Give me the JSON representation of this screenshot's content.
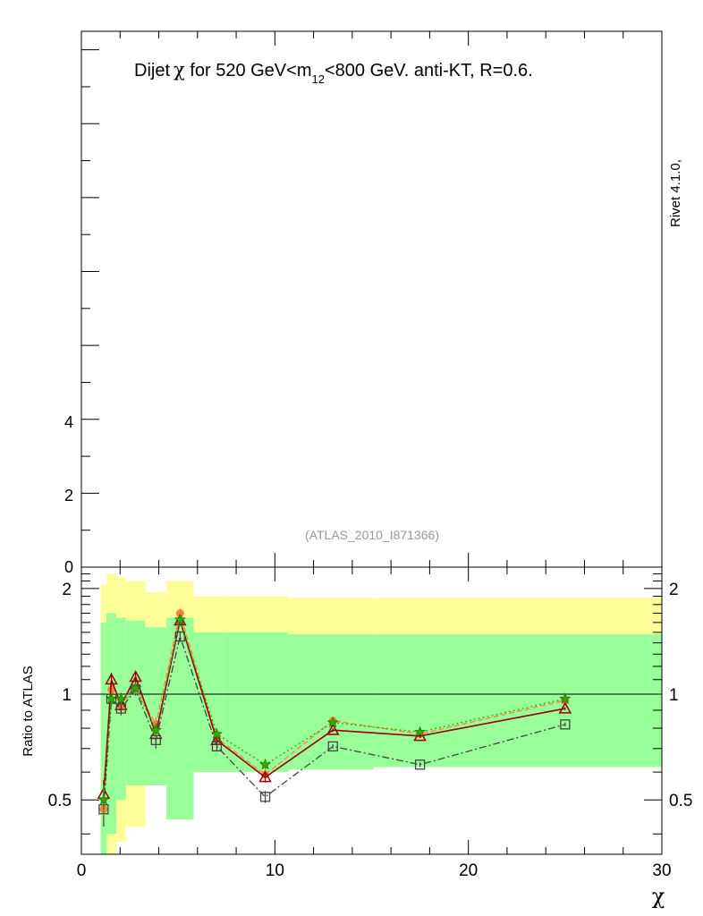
{
  "chart_data": [
    {
      "panel": "main",
      "type": "line",
      "title": "Dijet χ for 520 GeV<m₁₂<800 GeV.  anti-KT, R=0.6.",
      "title_parts": {
        "prefix": "Dijet",
        "chi": "χ",
        "middle": " for 520 GeV<m",
        "subscript": "12",
        "suffix": "<800 GeV.  anti-KT, R=0.6."
      },
      "watermark": "(ATLAS_2010_I871366)",
      "side_label": "Rivet 4.1.0,",
      "xlim": [
        0,
        30
      ],
      "ylim": [
        0,
        14.5
      ],
      "y_ticks": [
        {
          "value": 0,
          "label": "0"
        },
        {
          "value": 2,
          "label": "2"
        },
        {
          "value": 4,
          "label": "4"
        }
      ],
      "y_minor_ticks": [
        1,
        3,
        5,
        6,
        7,
        8,
        9,
        10,
        11,
        12,
        13,
        14
      ],
      "x_major_ticks": [
        0,
        10,
        20,
        30
      ],
      "grid": false
    },
    {
      "panel": "ratio",
      "type": "line",
      "ylabel": "Ratio to ATLAS",
      "xlabel": "χ",
      "xlim": [
        0,
        30
      ],
      "ylim": [
        0.35,
        2.3
      ],
      "log_y": true,
      "grid": false,
      "x_ticks": [
        {
          "value": 0,
          "label": "0"
        },
        {
          "value": 10,
          "label": "10"
        },
        {
          "value": 20,
          "label": "20"
        },
        {
          "value": 30,
          "label": "30"
        }
      ],
      "y_ticks": [
        {
          "value": 0.5,
          "label": "0.5"
        },
        {
          "value": 1,
          "label": "1"
        },
        {
          "value": 2,
          "label": "2"
        }
      ],
      "y_minor_ticks": [
        0.4,
        0.6,
        0.7,
        0.8,
        0.9,
        1.1,
        1.2,
        1.3,
        1.4,
        1.5,
        1.6,
        1.7,
        1.8,
        1.9,
        2.1,
        2.2
      ],
      "reference_line": 1,
      "bands": {
        "edges": [
          1,
          1.3,
          1.8,
          2.3,
          3.3,
          4.4,
          5.8,
          7.3,
          10.7,
          15.1,
          30
        ],
        "outer": {
          "color": "#ffff99",
          "lower": [
            0.25,
            0.28,
            0.38,
            0.42,
            0.55,
            0.44,
            0.6,
            0.6,
            0.61,
            0.62
          ],
          "upper": [
            2.05,
            2.2,
            2.15,
            2.1,
            1.95,
            2.1,
            1.9,
            1.9,
            1.88,
            1.88
          ]
        },
        "inner": {
          "color": "#99ff99",
          "lower": [
            0.35,
            0.4,
            0.5,
            0.55,
            0.55,
            0.44,
            0.6,
            0.6,
            0.61,
            0.62
          ],
          "upper": [
            1.6,
            1.7,
            1.65,
            1.62,
            1.55,
            1.65,
            1.5,
            1.5,
            1.48,
            1.48
          ]
        }
      },
      "series": [
        {
          "color": "#ff7f3f",
          "dash": "6,3",
          "marker": "dot",
          "x": [
            1.15,
            1.55,
            2.05,
            2.8,
            3.85,
            5.1,
            7.0,
            9.5,
            13.0,
            17.5,
            25.0
          ],
          "y": [
            0.47,
            1.03,
            0.93,
            1.04,
            0.82,
            1.7,
            0.75,
            0.59,
            0.84,
            0.77,
            0.96
          ],
          "err": [
            0.05,
            0.05,
            0.04,
            0.04,
            0.04,
            0.05,
            0.02,
            0.02,
            0.01,
            0.01,
            0.01
          ]
        },
        {
          "color": "#990000",
          "dash": "",
          "marker": "triangle",
          "x": [
            1.15,
            1.55,
            2.05,
            2.8,
            3.85,
            5.1,
            7.0,
            9.5,
            13.0,
            17.5,
            25.0
          ],
          "y": [
            0.52,
            1.1,
            0.93,
            1.12,
            0.77,
            1.62,
            0.74,
            0.58,
            0.79,
            0.76,
            0.91
          ],
          "err": [
            0.05,
            0.05,
            0.04,
            0.04,
            0.04,
            0.05,
            0.02,
            0.02,
            0.01,
            0.01,
            0.01
          ]
        },
        {
          "color": "#444444",
          "dash": "8,3,2,3",
          "marker": "square",
          "x": [
            1.15,
            1.55,
            2.05,
            2.8,
            3.85,
            5.1,
            7.0,
            9.5,
            13.0,
            17.5,
            25.0
          ],
          "y": [
            0.47,
            0.97,
            0.91,
            1.03,
            0.74,
            1.46,
            0.71,
            0.51,
            0.71,
            0.63,
            0.82
          ],
          "err": [
            0.05,
            0.05,
            0.04,
            0.04,
            0.04,
            0.05,
            0.02,
            0.02,
            0.01,
            0.01,
            0.01
          ]
        },
        {
          "color": "#33aa00",
          "dash": "2,3",
          "marker": "star",
          "x": [
            1.15,
            1.55,
            2.05,
            2.8,
            3.85,
            5.1,
            7.0,
            9.5,
            13.0,
            17.5,
            25.0
          ],
          "y": [
            0.5,
            0.97,
            0.97,
            1.04,
            0.79,
            1.63,
            0.77,
            0.63,
            0.83,
            0.78,
            0.97
          ],
          "err": [
            0.05,
            0.05,
            0.04,
            0.04,
            0.04,
            0.05,
            0.02,
            0.02,
            0.01,
            0.01,
            0.01
          ]
        }
      ]
    }
  ]
}
